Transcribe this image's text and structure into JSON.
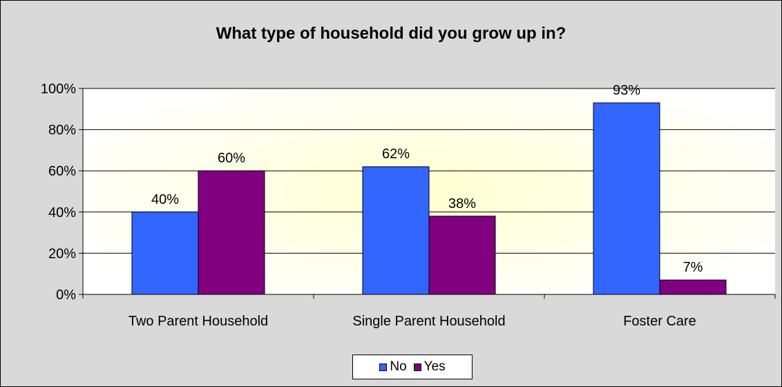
{
  "chart_data": {
    "type": "bar",
    "title": "What type of household did you grow up in?",
    "xlabel": "",
    "ylabel": "",
    "categories": [
      "Two Parent Household",
      "Single Parent Household",
      "Foster Care"
    ],
    "series": [
      {
        "name": "No",
        "values": [
          40,
          62,
          93
        ],
        "labels": [
          "40%",
          "62%",
          "93%"
        ],
        "color": "#3366ff"
      },
      {
        "name": "Yes",
        "values": [
          60,
          38,
          7
        ],
        "labels": [
          "60%",
          "38%",
          "7%"
        ],
        "color": "#800080"
      }
    ],
    "ylim": [
      0,
      100
    ],
    "yticks": [
      0,
      20,
      40,
      60,
      80,
      100
    ],
    "ytick_labels": [
      "0%",
      "20%",
      "40%",
      "60%",
      "80%",
      "100%"
    ],
    "grid": true,
    "legend_position": "bottom",
    "plot_background": "#ffffe0",
    "chart_background": "#d9d9d9"
  }
}
